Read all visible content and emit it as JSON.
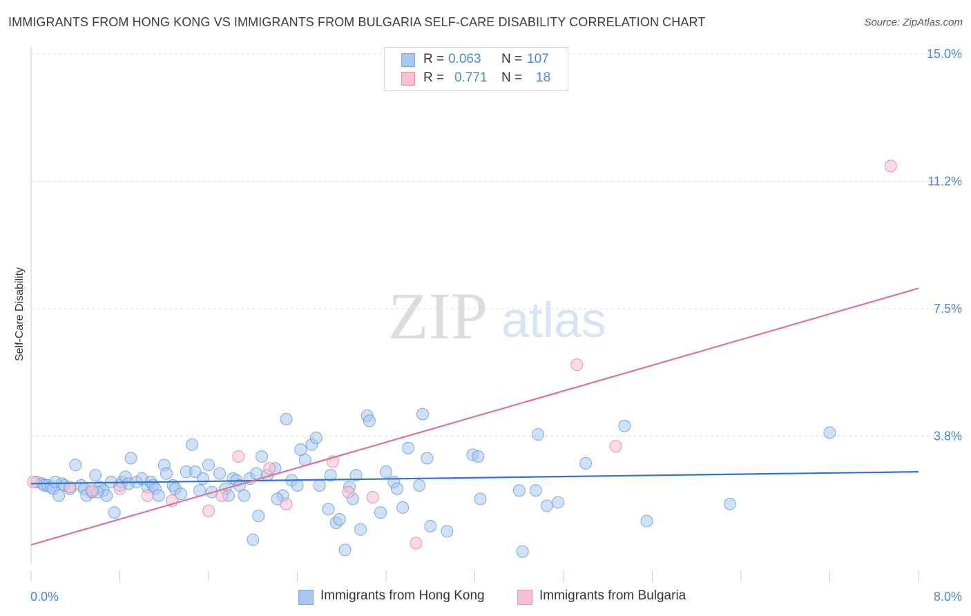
{
  "header": {
    "title": "IMMIGRANTS FROM HONG KONG VS IMMIGRANTS FROM BULGARIA SELF-CARE DISABILITY CORRELATION CHART",
    "source": "Source: ZipAtlas.com"
  },
  "watermark": {
    "zip": "ZIP",
    "atlas": "atlas"
  },
  "legend_stats": [
    {
      "r_label": "R =",
      "r_value": "0.063",
      "n_label": "N =",
      "n_value": "107",
      "color": "#a8c8f0",
      "border": "#7aa6e0"
    },
    {
      "r_label": "R =",
      "r_value": "0.771",
      "n_label": "N =",
      "n_value": "18",
      "color": "#f8c0d0",
      "border": "#e890aa"
    }
  ],
  "legend_series": [
    {
      "label": "Immigrants from Hong Kong",
      "color": "#a8c8f0",
      "border": "#7aa6e0"
    },
    {
      "label": "Immigrants from Bulgaria",
      "color": "#f8c0d0",
      "border": "#e890aa"
    }
  ],
  "chart_data": {
    "type": "scatter",
    "title": "IMMIGRANTS FROM HONG KONG VS IMMIGRANTS FROM BULGARIA SELF-CARE DISABILITY CORRELATION CHART",
    "xlabel": "",
    "ylabel": "Self-Care Disability",
    "xlim": [
      0,
      8.0
    ],
    "ylim": [
      0,
      15.0
    ],
    "x_tick_labels": [
      "0.0%",
      "8.0%"
    ],
    "y_tick_labels": [
      "3.8%",
      "7.5%",
      "11.2%",
      "15.0%"
    ],
    "y_ticks": [
      3.75,
      7.5,
      11.25,
      15.0
    ],
    "grid": "horizontal dashed",
    "series": [
      {
        "name": "Immigrants from Hong Kong",
        "color": "#5b8fd8",
        "fill": "#a8c8f0",
        "trend": {
          "x": [
            0.0,
            8.0
          ],
          "y": [
            2.35,
            2.7
          ]
        },
        "points": [
          [
            0.05,
            2.4
          ],
          [
            0.1,
            2.35
          ],
          [
            0.12,
            2.3
          ],
          [
            0.15,
            2.3
          ],
          [
            0.18,
            2.25
          ],
          [
            0.2,
            2.2
          ],
          [
            0.22,
            2.4
          ],
          [
            0.25,
            2.0
          ],
          [
            0.28,
            2.35
          ],
          [
            0.3,
            2.3
          ],
          [
            0.4,
            2.9
          ],
          [
            0.45,
            2.3
          ],
          [
            0.48,
            2.2
          ],
          [
            0.5,
            2.0
          ],
          [
            0.55,
            2.1
          ],
          [
            0.58,
            2.6
          ],
          [
            0.62,
            2.25
          ],
          [
            0.65,
            2.15
          ],
          [
            0.68,
            2.0
          ],
          [
            0.72,
            2.4
          ],
          [
            0.75,
            1.5
          ],
          [
            0.8,
            2.3
          ],
          [
            0.82,
            2.4
          ],
          [
            0.85,
            2.55
          ],
          [
            0.88,
            2.35
          ],
          [
            0.9,
            3.1
          ],
          [
            0.95,
            2.4
          ],
          [
            1.0,
            2.5
          ],
          [
            1.05,
            2.25
          ],
          [
            1.08,
            2.4
          ],
          [
            1.1,
            2.3
          ],
          [
            1.12,
            2.2
          ],
          [
            1.15,
            2.0
          ],
          [
            1.2,
            2.9
          ],
          [
            1.22,
            2.65
          ],
          [
            1.28,
            2.3
          ],
          [
            1.3,
            2.2
          ],
          [
            1.35,
            2.05
          ],
          [
            1.4,
            2.7
          ],
          [
            1.45,
            3.5
          ],
          [
            1.48,
            2.7
          ],
          [
            1.55,
            2.5
          ],
          [
            1.6,
            2.9
          ],
          [
            1.63,
            2.1
          ],
          [
            1.7,
            2.65
          ],
          [
            1.75,
            2.2
          ],
          [
            1.78,
            2.0
          ],
          [
            1.82,
            2.5
          ],
          [
            1.85,
            2.45
          ],
          [
            1.88,
            2.3
          ],
          [
            1.92,
            2.0
          ],
          [
            1.97,
            2.5
          ],
          [
            2.0,
            0.7
          ],
          [
            2.03,
            2.65
          ],
          [
            2.05,
            1.4
          ],
          [
            2.08,
            3.15
          ],
          [
            2.13,
            2.6
          ],
          [
            2.2,
            2.8
          ],
          [
            2.27,
            2.0
          ],
          [
            2.3,
            4.25
          ],
          [
            2.35,
            2.45
          ],
          [
            2.4,
            2.3
          ],
          [
            2.43,
            3.35
          ],
          [
            2.47,
            3.05
          ],
          [
            2.53,
            3.5
          ],
          [
            2.57,
            3.7
          ],
          [
            2.6,
            2.3
          ],
          [
            2.68,
            1.6
          ],
          [
            2.7,
            2.6
          ],
          [
            2.75,
            1.2
          ],
          [
            2.78,
            1.3
          ],
          [
            2.83,
            0.4
          ],
          [
            2.87,
            2.25
          ],
          [
            2.9,
            1.9
          ],
          [
            2.93,
            2.6
          ],
          [
            2.97,
            1.0
          ],
          [
            3.03,
            4.35
          ],
          [
            3.05,
            4.2
          ],
          [
            3.15,
            1.5
          ],
          [
            3.2,
            2.7
          ],
          [
            3.27,
            2.4
          ],
          [
            3.35,
            1.65
          ],
          [
            3.4,
            3.4
          ],
          [
            3.5,
            2.3
          ],
          [
            3.53,
            4.4
          ],
          [
            3.57,
            3.1
          ],
          [
            3.6,
            1.1
          ],
          [
            3.75,
            0.95
          ],
          [
            3.98,
            3.2
          ],
          [
            4.03,
            3.15
          ],
          [
            4.05,
            1.9
          ],
          [
            4.4,
            2.15
          ],
          [
            4.43,
            0.35
          ],
          [
            4.55,
            2.15
          ],
          [
            4.57,
            3.8
          ],
          [
            4.65,
            1.7
          ],
          [
            4.75,
            1.8
          ],
          [
            5.0,
            2.95
          ],
          [
            5.35,
            4.05
          ],
          [
            5.55,
            1.25
          ],
          [
            6.3,
            1.75
          ],
          [
            7.2,
            3.85
          ],
          [
            0.35,
            2.2
          ],
          [
            1.52,
            2.15
          ],
          [
            2.22,
            1.9
          ],
          [
            0.6,
            2.1
          ],
          [
            3.3,
            2.2
          ]
        ]
      },
      {
        "name": "Immigrants from Bulgaria",
        "color": "#e0709a",
        "fill": "#f8c0d0",
        "trend": {
          "x": [
            0.0,
            8.0
          ],
          "y": [
            0.55,
            8.1
          ]
        },
        "points": [
          [
            0.02,
            2.4
          ],
          [
            0.35,
            2.25
          ],
          [
            0.55,
            2.15
          ],
          [
            0.8,
            2.2
          ],
          [
            1.05,
            2.0
          ],
          [
            1.27,
            1.85
          ],
          [
            1.6,
            1.55
          ],
          [
            1.72,
            2.0
          ],
          [
            1.87,
            3.15
          ],
          [
            2.15,
            2.8
          ],
          [
            2.3,
            1.75
          ],
          [
            2.72,
            3.0
          ],
          [
            2.86,
            2.1
          ],
          [
            3.08,
            1.95
          ],
          [
            3.47,
            0.6
          ],
          [
            4.92,
            5.85
          ],
          [
            5.27,
            3.45
          ],
          [
            7.75,
            11.7
          ]
        ]
      }
    ]
  }
}
